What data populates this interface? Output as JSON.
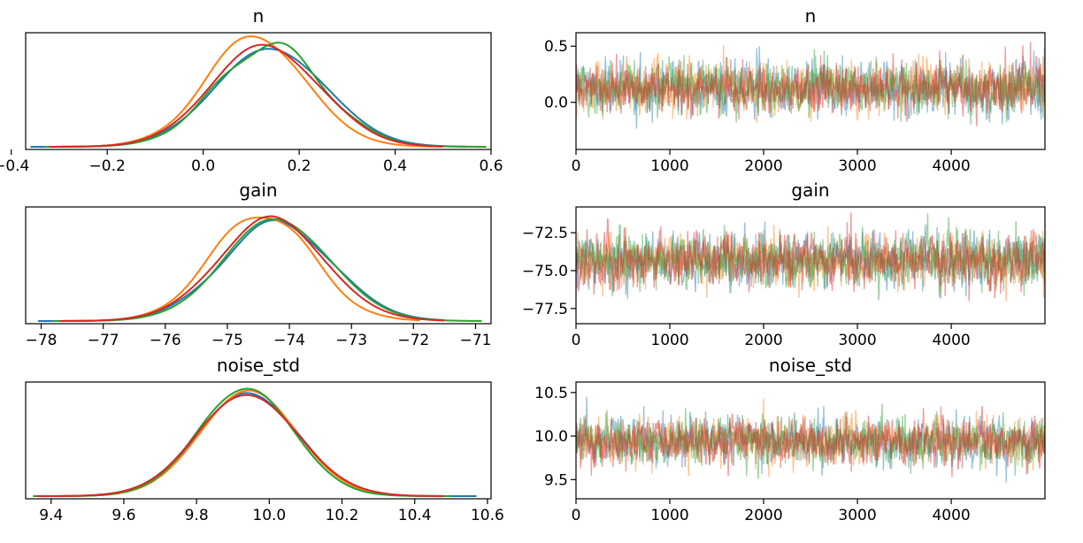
{
  "chart_data": [
    {
      "type": "line",
      "kind": "density",
      "title": "n",
      "xlim": [
        -0.37,
        0.6
      ],
      "x_ticks": [
        "−0.4",
        "−0.2",
        "0.0",
        "0.2",
        "0.4",
        "0.6"
      ],
      "x_tick_values": [
        -0.4,
        -0.2,
        0.0,
        0.2,
        0.4,
        0.6
      ],
      "y_ticks": [],
      "series": [
        {
          "color": "#1f77b4",
          "mean": 0.14,
          "sd": 0.115,
          "range": [
            -0.36,
            0.55
          ]
        },
        {
          "color": "#ff7f0e",
          "mean": 0.11,
          "sd": 0.105,
          "range": [
            -0.3,
            0.5
          ]
        },
        {
          "color": "#2ca02c",
          "mean": 0.14,
          "sd": 0.11,
          "range": [
            -0.33,
            0.59
          ]
        },
        {
          "color": "#d62728",
          "mean": 0.13,
          "sd": 0.112,
          "range": [
            -0.32,
            0.5
          ]
        }
      ]
    },
    {
      "type": "line",
      "kind": "trace",
      "title": "n",
      "xlim": [
        0,
        4999
      ],
      "ylim": [
        -0.42,
        0.62
      ],
      "x_ticks": [
        "0",
        "1000",
        "2000",
        "3000",
        "4000"
      ],
      "x_tick_values": [
        0,
        1000,
        2000,
        3000,
        4000
      ],
      "y_ticks": [
        "0.5",
        "0.0"
      ],
      "y_tick_values": [
        0.5,
        0.0
      ],
      "center": 0.13,
      "sd": 0.11,
      "series": [
        {
          "color": "#1f77b4"
        },
        {
          "color": "#ff7f0e"
        },
        {
          "color": "#2ca02c"
        },
        {
          "color": "#d62728"
        }
      ]
    },
    {
      "type": "line",
      "kind": "density",
      "title": "gain",
      "xlim": [
        -78.25,
        -70.75
      ],
      "x_ticks": [
        "−78",
        "−77",
        "−76",
        "−75",
        "−74",
        "−73",
        "−72",
        "−71"
      ],
      "x_tick_values": [
        -78,
        -77,
        -76,
        -75,
        -74,
        -73,
        -72,
        -71
      ],
      "y_ticks": [],
      "series": [
        {
          "color": "#1f77b4",
          "mean": -74.2,
          "sd": 0.88,
          "range": [
            -78.05,
            -71.5
          ]
        },
        {
          "color": "#ff7f0e",
          "mean": -74.45,
          "sd": 0.8,
          "range": [
            -77.5,
            -71.9
          ]
        },
        {
          "color": "#2ca02c",
          "mean": -74.2,
          "sd": 0.85,
          "range": [
            -77.8,
            -70.9
          ]
        },
        {
          "color": "#d62728",
          "mean": -74.3,
          "sd": 0.86,
          "range": [
            -77.7,
            -71.5
          ]
        }
      ]
    },
    {
      "type": "line",
      "kind": "trace",
      "title": "gain",
      "xlim": [
        0,
        4999
      ],
      "ylim": [
        -78.5,
        -70.8
      ],
      "x_ticks": [
        "0",
        "1000",
        "2000",
        "3000",
        "4000"
      ],
      "x_tick_values": [
        0,
        1000,
        2000,
        3000,
        4000
      ],
      "y_ticks": [
        "−72.5",
        "−75.0",
        "−77.5"
      ],
      "y_tick_values": [
        -72.5,
        -75.0,
        -77.5
      ],
      "center": -74.3,
      "sd": 0.85,
      "series": [
        {
          "color": "#1f77b4"
        },
        {
          "color": "#ff7f0e"
        },
        {
          "color": "#2ca02c"
        },
        {
          "color": "#d62728"
        }
      ]
    },
    {
      "type": "line",
      "kind": "density",
      "title": "noise_std",
      "xlim": [
        9.33,
        10.61
      ],
      "x_ticks": [
        "9.4",
        "9.6",
        "9.8",
        "10.0",
        "10.2",
        "10.4",
        "10.6"
      ],
      "x_tick_values": [
        9.4,
        9.6,
        9.8,
        10.0,
        10.2,
        10.4,
        10.6
      ],
      "y_ticks": [],
      "series": [
        {
          "color": "#1f77b4",
          "mean": 9.94,
          "sd": 0.135,
          "range": [
            9.38,
            10.57
          ]
        },
        {
          "color": "#ff7f0e",
          "mean": 9.945,
          "sd": 0.132,
          "range": [
            9.4,
            10.47
          ]
        },
        {
          "color": "#2ca02c",
          "mean": 9.935,
          "sd": 0.13,
          "range": [
            9.35,
            10.5
          ]
        },
        {
          "color": "#d62728",
          "mean": 9.94,
          "sd": 0.14,
          "range": [
            9.36,
            10.48
          ]
        }
      ]
    },
    {
      "type": "line",
      "kind": "trace",
      "title": "noise_std",
      "xlim": [
        0,
        4999
      ],
      "ylim": [
        9.28,
        10.62
      ],
      "x_ticks": [
        "0",
        "1000",
        "2000",
        "3000",
        "4000"
      ],
      "x_tick_values": [
        0,
        1000,
        2000,
        3000,
        4000
      ],
      "y_ticks": [
        "10.5",
        "10.0",
        "9.5"
      ],
      "y_tick_values": [
        10.5,
        10.0,
        9.5
      ],
      "center": 9.94,
      "sd": 0.13,
      "series": [
        {
          "color": "#1f77b4"
        },
        {
          "color": "#ff7f0e"
        },
        {
          "color": "#2ca02c"
        },
        {
          "color": "#d62728"
        }
      ]
    }
  ]
}
